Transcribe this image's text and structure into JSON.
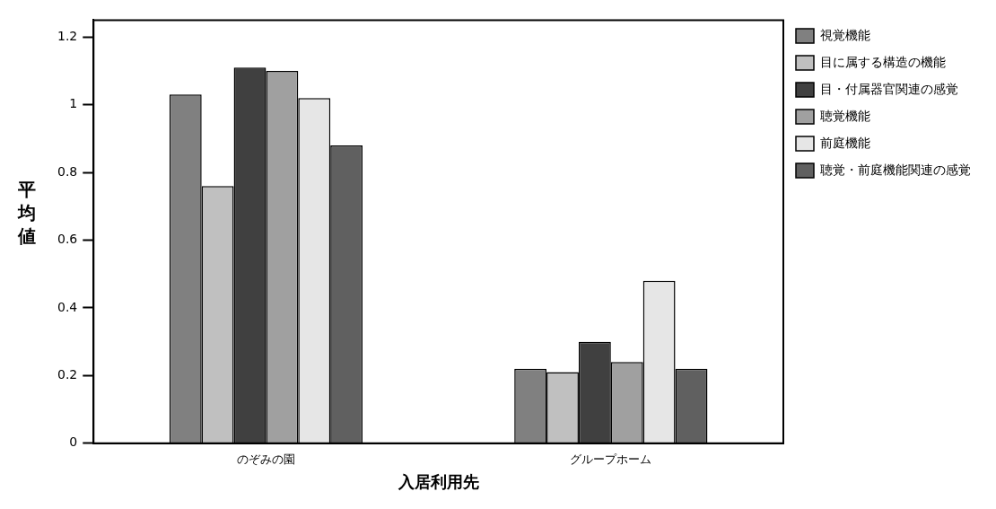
{
  "chart_data": {
    "type": "bar",
    "xlabel": "入居利用先",
    "ylabel": "平均値",
    "categories": [
      "のぞみの園",
      "グループホーム"
    ],
    "series": [
      {
        "name": "視覚機能",
        "color": "#808080",
        "values": [
          1.03,
          0.22
        ]
      },
      {
        "name": "目に属する構造の機能",
        "color": "#c0c0c0",
        "values": [
          0.76,
          0.21
        ]
      },
      {
        "name": "目・付属器官関連の感覚",
        "color": "#404040",
        "values": [
          1.11,
          0.3
        ]
      },
      {
        "name": "聴覚機能",
        "color": "#a0a0a0",
        "values": [
          1.1,
          0.24
        ]
      },
      {
        "name": "前庭機能",
        "color": "#e6e6e6",
        "values": [
          1.02,
          0.48
        ]
      },
      {
        "name": "聴覚・前庭機能関連の感覚",
        "color": "#606060",
        "values": [
          0.88,
          0.22
        ]
      }
    ],
    "ylim": [
      0,
      1.25
    ],
    "yticks": [
      0,
      0.2,
      0.4,
      0.6,
      0.8,
      1,
      1.2
    ],
    "grid": false,
    "legend": "right"
  }
}
